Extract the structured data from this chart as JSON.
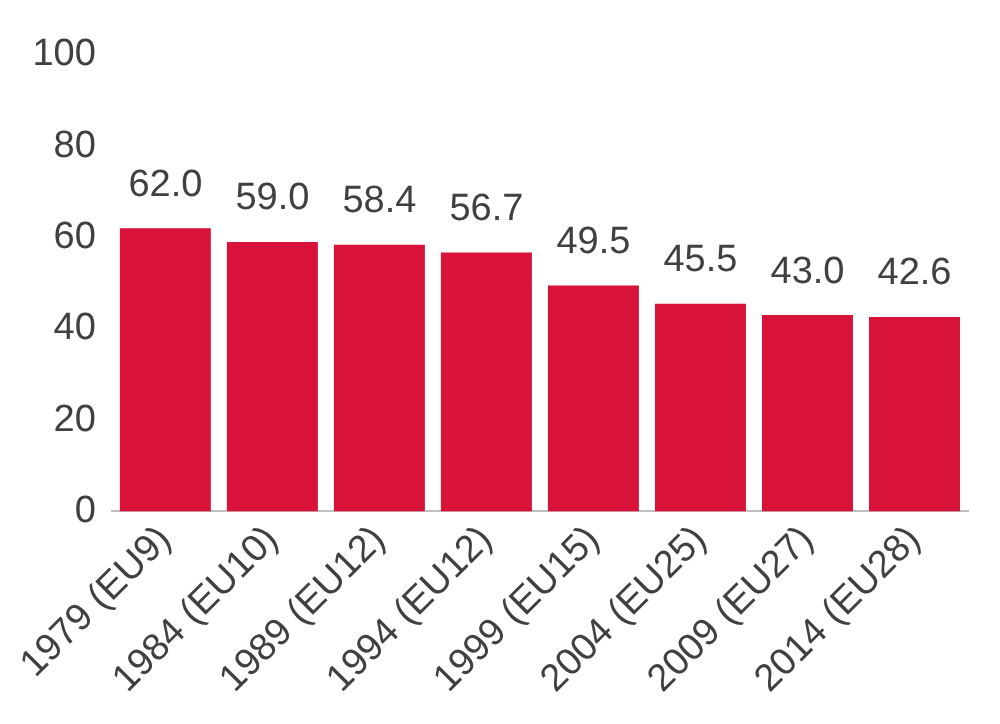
{
  "chart_data": {
    "type": "bar",
    "categories": [
      "1979 (EU9)",
      "1984 (EU10)",
      "1989 (EU12)",
      "1994 (EU12)",
      "1999 (EU15)",
      "2004 (EU25)",
      "2009 (EU27)",
      "2014 (EU28)"
    ],
    "values": [
      62.0,
      59.0,
      58.4,
      56.7,
      49.5,
      45.5,
      43.0,
      42.6
    ],
    "color": "#d9123a",
    "ylim": [
      0,
      100
    ],
    "yticks": [
      0,
      20,
      40,
      60,
      80,
      100
    ],
    "grid": false,
    "value_labels": [
      "62.0",
      "59.0",
      "58.4",
      "56.7",
      "49.5",
      "45.5",
      "43.0",
      "42.6"
    ],
    "legend": false
  }
}
